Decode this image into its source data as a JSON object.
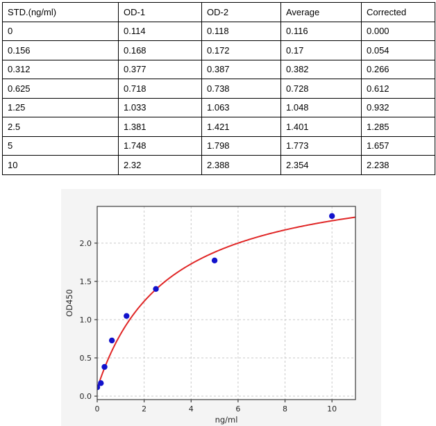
{
  "table": {
    "headers": [
      "STD.(ng/ml)",
      "OD-1",
      "OD-2",
      "Average",
      "Corrected"
    ],
    "rows": [
      [
        "0",
        "0.114",
        "0.118",
        "0.116",
        "0.000"
      ],
      [
        "0.156",
        "0.168",
        "0.172",
        "0.17",
        "0.054"
      ],
      [
        "0.312",
        "0.377",
        "0.387",
        "0.382",
        "0.266"
      ],
      [
        "0.625",
        "0.718",
        "0.738",
        "0.728",
        "0.612"
      ],
      [
        "1.25",
        "1.033",
        "1.063",
        "1.048",
        "0.932"
      ],
      [
        "2.5",
        "1.381",
        "1.421",
        "1.401",
        "1.285"
      ],
      [
        "5",
        "1.748",
        "1.798",
        "1.773",
        "1.657"
      ],
      [
        "10",
        "2.32",
        "2.388",
        "2.354",
        "2.238"
      ]
    ]
  },
  "chart_data": {
    "type": "scatter",
    "title": "",
    "xlabel": "ng/ml",
    "ylabel": "OD450",
    "xlim": [
      0,
      11
    ],
    "ylim": [
      -0.045,
      2.48
    ],
    "xticks": [
      0,
      2,
      4,
      6,
      8,
      10
    ],
    "xtick_labels": [
      "0",
      "2",
      "4",
      "6",
      "8",
      "10"
    ],
    "yticks": [
      0.0,
      0.5,
      1.0,
      1.5,
      2.0
    ],
    "ytick_labels": [
      "0.0",
      "0.5",
      "1.0",
      "1.5",
      "2.0"
    ],
    "grid": "dashed",
    "legend": "none",
    "points": {
      "x": [
        0,
        0.156,
        0.312,
        0.625,
        1.25,
        2.5,
        5,
        10
      ],
      "y": [
        0.116,
        0.17,
        0.382,
        0.728,
        1.048,
        1.401,
        1.773,
        2.354
      ]
    },
    "fit_curve": {
      "type": "saturation",
      "y0": 0.1,
      "vmax": 2.85,
      "k": 3.0
    },
    "colors": {
      "point": "#1212cc",
      "curve": "#e02626",
      "grid": "#c9c9c9",
      "spine": "#3a3a3a",
      "tick_text": "#262626",
      "figure_bg": "#f4f4f4",
      "plot_bg": "#ffffff"
    }
  }
}
